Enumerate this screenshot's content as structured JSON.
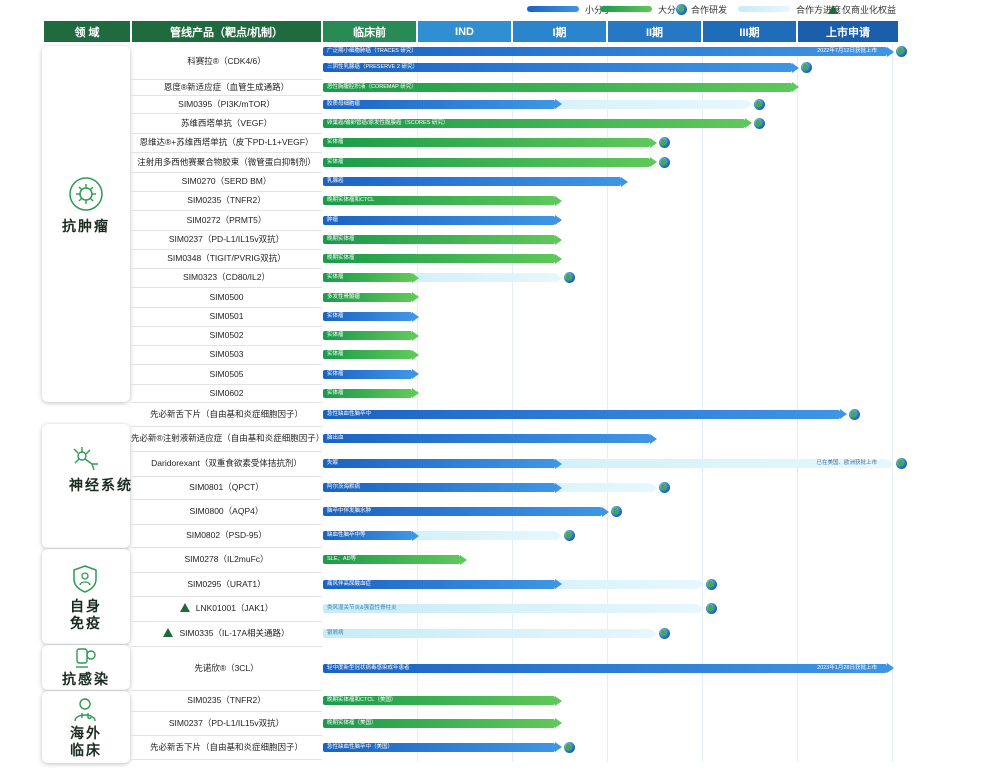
{
  "legend": {
    "small_molecule": "小分子",
    "large_molecule": "大分子",
    "partner_rd": "合作研发",
    "partner_progress": "合作方进度",
    "commercial_only": "仅商业化权益"
  },
  "header": {
    "domain": "领 域",
    "product": "管线产品（靶点/机制）",
    "stages": [
      "临床前",
      "IND",
      "I期",
      "II期",
      "III期",
      "上市申请"
    ]
  },
  "domains": [
    {
      "key": "oncology",
      "label": "抗肿瘤"
    },
    {
      "key": "neuro",
      "label": "神经系统"
    },
    {
      "key": "immunology",
      "label": "自身免疫"
    },
    {
      "key": "antiinfective",
      "label": "抗感染"
    },
    {
      "key": "overseas",
      "label": "海外临床"
    }
  ],
  "colors": {
    "header_green": "#1f6b3f",
    "stage_blue": "#1f78c8",
    "blue_start": "#1b63c2",
    "blue_end": "#3f95e5",
    "green_start": "#1a9a4a",
    "green_end": "#5ec85a",
    "light_start": "#c6ecf7",
    "light_end": "#e5f7fc",
    "triangle": "#1d6a3a"
  },
  "chart_data": {
    "type": "table",
    "stages": [
      "临床前",
      "IND",
      "I期",
      "II期",
      "III期",
      "上市申请"
    ],
    "rows": [
      {
        "name": "科赛拉®（CDK4/6）",
        "bars": [
          {
            "text": "广泛期小细胞肺癌（TRACES 研究）",
            "note": "2022年7月12日获批上市",
            "kind": "blue",
            "end": 6,
            "partner_end": 0,
            "globe": true
          },
          {
            "text": "三阴性乳腺癌（PRESERVE 2 研究）",
            "note": "",
            "kind": "blue",
            "end": 5,
            "partner_end": 0,
            "globe": true
          }
        ]
      },
      {
        "name": "恩度®新适应症（血管生成通路）",
        "bars": [
          {
            "text": "恶性胸腹腔积液（COREMAP 研究）",
            "note": "",
            "kind": "green",
            "end": 5,
            "partner_end": 0,
            "globe": false
          }
        ]
      },
      {
        "name": "SIM0395（PI3K/mTOR）",
        "bars": [
          {
            "text": "胶质母细胞瘤",
            "note": "",
            "kind": "blue",
            "end": 2.5,
            "partner_end": 4.5,
            "globe": true
          }
        ]
      },
      {
        "name": "苏维西塔单抗（VEGF）",
        "bars": [
          {
            "text": "卵巢癌/输卵管癌/原发性腹膜癌（SCORES 研究）",
            "note": "",
            "kind": "green",
            "end": 4.5,
            "partner_end": 0,
            "globe": true
          }
        ]
      },
      {
        "name": "恩维达®+苏维西塔单抗（皮下PD-L1+VEGF）",
        "bars": [
          {
            "text": "实体瘤",
            "note": "",
            "kind": "green",
            "end": 3.5,
            "partner_end": 0,
            "globe": true
          }
        ]
      },
      {
        "name": "注射用多西他赛聚合物胶束（微管蛋白抑制剂）",
        "bars": [
          {
            "text": "实体瘤",
            "note": "",
            "kind": "green",
            "end": 3.5,
            "partner_end": 0,
            "globe": true
          }
        ]
      },
      {
        "name": "SIM0270（SERD BM）",
        "bars": [
          {
            "text": "乳腺癌",
            "note": "",
            "kind": "blue",
            "end": 3.2,
            "partner_end": 0,
            "globe": false
          }
        ]
      },
      {
        "name": "SIM0235（TNFR2）",
        "bars": [
          {
            "text": "晚期实体瘤和CTCL",
            "note": "",
            "kind": "green",
            "end": 2.5,
            "partner_end": 0,
            "globe": false
          }
        ]
      },
      {
        "name": "SIM0272（PRMT5）",
        "bars": [
          {
            "text": "肿瘤",
            "note": "",
            "kind": "blue",
            "end": 2.5,
            "partner_end": 0,
            "globe": false
          }
        ]
      },
      {
        "name": "SIM0237（PD-L1/IL15v双抗）",
        "bars": [
          {
            "text": "晚期实体瘤",
            "note": "",
            "kind": "green",
            "end": 2.5,
            "partner_end": 0,
            "globe": false
          }
        ]
      },
      {
        "name": "SIM0348（TIGIT/PVRIG双抗）",
        "bars": [
          {
            "text": "晚期实体瘤",
            "note": "",
            "kind": "green",
            "end": 2.5,
            "partner_end": 0,
            "globe": false
          }
        ]
      },
      {
        "name": "SIM0323（CD80/IL2）",
        "bars": [
          {
            "text": "实体瘤",
            "note": "",
            "kind": "green",
            "end": 1,
            "partner_end": 2.5,
            "globe": true
          }
        ]
      },
      {
        "name": "SIM0500",
        "bars": [
          {
            "text": "多发性骨髓瘤",
            "note": "",
            "kind": "green",
            "end": 1,
            "partner_end": 0,
            "globe": false
          }
        ]
      },
      {
        "name": "SIM0501",
        "bars": [
          {
            "text": "实体瘤",
            "note": "",
            "kind": "blue",
            "end": 1,
            "partner_end": 0,
            "globe": false
          }
        ]
      },
      {
        "name": "SIM0502",
        "bars": [
          {
            "text": "实体瘤",
            "note": "",
            "kind": "green",
            "end": 1,
            "partner_end": 0,
            "globe": false
          }
        ]
      },
      {
        "name": "SIM0503",
        "bars": [
          {
            "text": "实体瘤",
            "note": "",
            "kind": "green",
            "end": 1,
            "partner_end": 0,
            "globe": false
          }
        ]
      },
      {
        "name": "SIM0505",
        "bars": [
          {
            "text": "实体瘤",
            "note": "",
            "kind": "blue",
            "end": 1,
            "partner_end": 0,
            "globe": false
          }
        ]
      },
      {
        "name": "SIM0602",
        "bars": [
          {
            "text": "实体瘤",
            "note": "",
            "kind": "green",
            "end": 1,
            "partner_end": 0,
            "globe": false
          }
        ]
      },
      {
        "name": "先必新舌下片（自由基和炎症细胞因子）",
        "bars": [
          {
            "text": "急性缺血性脑卒中",
            "note": "",
            "kind": "blue",
            "end": 5.5,
            "partner_end": 0,
            "globe": true
          }
        ]
      },
      {
        "name": "先必新®注射液新适应症（自由基和炎症细胞因子）",
        "bars": [
          {
            "text": "脑出血",
            "note": "",
            "kind": "blue",
            "end": 3.5,
            "partner_end": 0,
            "globe": false
          }
        ]
      },
      {
        "name": "Daridorexant（双重食欲素受体拮抗剂）",
        "bars": [
          {
            "text": "失眠",
            "note": "已在美国、欧洲获批上市",
            "kind": "blue",
            "end": 2.5,
            "partner_end": 6,
            "globe": true
          }
        ]
      },
      {
        "name": "SIM0801（QPCT）",
        "bars": [
          {
            "text": "阿尔茨海默病",
            "note": "",
            "kind": "blue",
            "end": 2.5,
            "partner_end": 3.5,
            "globe": true
          }
        ]
      },
      {
        "name": "SIM0800（AQP4）",
        "bars": [
          {
            "text": "脑卒中伴发脑水肿",
            "note": "",
            "kind": "blue",
            "end": 3,
            "partner_end": 0,
            "globe": true
          }
        ]
      },
      {
        "name": "SIM0802（PSD-95）",
        "bars": [
          {
            "text": "缺血性脑卒中等",
            "note": "",
            "kind": "blue",
            "end": 1,
            "partner_end": 2.5,
            "globe": true
          }
        ]
      },
      {
        "name": "SIM0278（IL2muFc）",
        "bars": [
          {
            "text": "SLE、AD等",
            "note": "",
            "kind": "green",
            "end": 1.5,
            "partner_end": 0,
            "globe": false
          }
        ]
      },
      {
        "name": "SIM0295（URAT1）",
        "bars": [
          {
            "text": "痛风伴高尿酸血症",
            "note": "",
            "kind": "blue",
            "end": 2.5,
            "partner_end": 4,
            "globe": true
          }
        ]
      },
      {
        "name": "LNK01001（JAK1）",
        "commercial_only": true,
        "bars": [
          {
            "text": "类风湿关节炎&强直性脊柱炎",
            "note": "",
            "kind": "light",
            "end": 0,
            "partner_end": 4,
            "globe": true
          }
        ]
      },
      {
        "name": "SIM0335（IL-17A相关通路）",
        "commercial_only": true,
        "bars": [
          {
            "text": "银屑病",
            "note": "",
            "kind": "light",
            "end": 0,
            "partner_end": 3.5,
            "globe": true
          }
        ]
      },
      {
        "name": "先诺欣®（3CL）",
        "bars": [
          {
            "text": "轻中度新型冠状病毒感染成年患者",
            "note": "2023年1月28日获批上市",
            "kind": "blue",
            "end": 6,
            "partner_end": 0,
            "globe": false
          }
        ]
      },
      {
        "name": "SIM0235（TNFR2）",
        "bars": [
          {
            "text": "晚期实体瘤和CTCL（美国）",
            "note": "",
            "kind": "green",
            "end": 2.5,
            "partner_end": 0,
            "globe": false
          }
        ]
      },
      {
        "name": "SIM0237（PD-L1/IL15v双抗）",
        "bars": [
          {
            "text": "晚期实体瘤（美国）",
            "note": "",
            "kind": "green",
            "end": 2.5,
            "partner_end": 0,
            "globe": false
          }
        ]
      },
      {
        "name": "先必新舌下片（自由基和炎症细胞因子）",
        "bars": [
          {
            "text": "急性缺血性脑卒中（美国）",
            "note": "",
            "kind": "blue",
            "end": 2.5,
            "partner_end": 0,
            "globe": true
          }
        ]
      }
    ]
  }
}
